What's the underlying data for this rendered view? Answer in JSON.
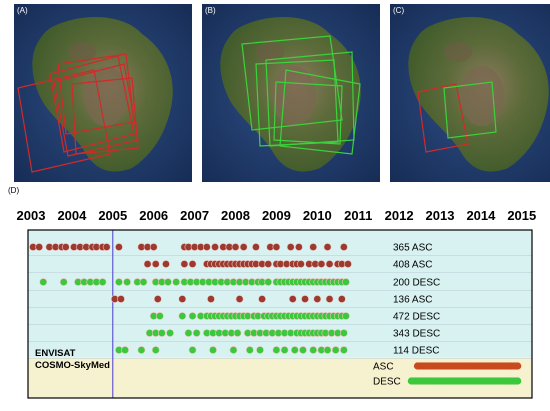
{
  "panels": [
    {
      "label": "(A)",
      "color": "#d02a2a"
    },
    {
      "label": "(B)",
      "color": "#3cd23c"
    },
    {
      "label": "(C)",
      "color": "#3cd23c",
      "color2": "#d02a2a"
    }
  ],
  "timeline_label": "(D)",
  "colors": {
    "envisat": "#9b3a2e",
    "cosmo": "#3cc83c",
    "envisat_band": "#d8f2f2",
    "cosmo_band": "#f6f2cf",
    "marker_line": "#4a3ad0"
  },
  "chart_data": {
    "type": "timeline",
    "x_ticks": [
      "2003",
      "2004",
      "2005",
      "2006",
      "2007",
      "2008",
      "2009",
      "2010",
      "2011",
      "2012",
      "2013",
      "2014",
      "2015"
    ],
    "marker_year": 2005,
    "legend": [
      "ENVISAT",
      "COSMO-SkyMed"
    ],
    "tracks": [
      {
        "name": "365 ASC",
        "sensor": "ENVISAT",
        "dates": [
          2003.05,
          2003.2,
          2003.45,
          2003.6,
          2003.75,
          2003.85,
          2004.05,
          2004.2,
          2004.35,
          2004.5,
          2004.6,
          2004.75,
          2004.85,
          2005.15,
          2005.7,
          2005.85,
          2006.0,
          2006.75,
          2006.85,
          2007.0,
          2007.15,
          2007.3,
          2007.5,
          2007.7,
          2007.85,
          2008.0,
          2008.2,
          2008.5,
          2008.85,
          2009.0,
          2009.35,
          2009.55,
          2009.9,
          2010.25,
          2010.65
        ]
      },
      {
        "name": "408 ASC",
        "sensor": "ENVISAT",
        "dates": [
          2005.85,
          2006.05,
          2006.3,
          2006.75,
          2006.95,
          2007.3,
          2007.4,
          2007.5,
          2007.6,
          2007.7,
          2007.8,
          2007.9,
          2008.0,
          2008.1,
          2008.2,
          2008.3,
          2008.4,
          2008.5,
          2008.65,
          2008.8,
          2009.0,
          2009.1,
          2009.25,
          2009.4,
          2009.5,
          2009.6,
          2009.8,
          2009.95,
          2010.1,
          2010.3,
          2010.5,
          2010.6,
          2010.75
        ]
      },
      {
        "name": "200 DESC",
        "sensor": "ENVISAT",
        "dates": [
          2003.3,
          2003.8,
          2004.15,
          2004.3,
          2004.45,
          2004.6,
          2004.75,
          2005.15,
          2005.35,
          2005.6,
          2005.75,
          2006.05,
          2006.2,
          2006.35,
          2006.55,
          2006.75,
          2006.9,
          2007.05,
          2007.2,
          2007.35,
          2007.5,
          2007.65,
          2007.8,
          2007.95,
          2008.1,
          2008.25,
          2008.4,
          2008.55,
          2008.65,
          2008.8,
          2009.0,
          2009.1,
          2009.2,
          2009.3,
          2009.4,
          2009.5,
          2009.6,
          2009.7,
          2009.8,
          2009.9,
          2010.0,
          2010.1,
          2010.2,
          2010.3,
          2010.4,
          2010.5,
          2010.6,
          2010.7
        ]
      },
      {
        "name": "136 ASC",
        "sensor": "ENVISAT",
        "dates": [
          2005.05,
          2005.2,
          2006.1,
          2006.7,
          2007.4,
          2008.1,
          2008.65,
          2009.4,
          2009.7,
          2010.0,
          2010.3,
          2010.6
        ]
      },
      {
        "name": "472 DESC",
        "sensor": "ENVISAT",
        "dates": [
          2006.0,
          2006.15,
          2006.7,
          2006.95,
          2007.15,
          2007.3,
          2007.4,
          2007.5,
          2007.6,
          2007.7,
          2007.8,
          2007.9,
          2008.0,
          2008.1,
          2008.2,
          2008.3,
          2008.45,
          2008.55,
          2008.7,
          2008.8,
          2008.9,
          2009.0,
          2009.1,
          2009.2,
          2009.3,
          2009.4,
          2009.5,
          2009.6,
          2009.7,
          2009.8,
          2009.9,
          2010.0,
          2010.1,
          2010.2,
          2010.3,
          2010.4,
          2010.5,
          2010.6,
          2010.7
        ]
      },
      {
        "name": "343 DESC",
        "sensor": "ENVISAT",
        "dates": [
          2005.9,
          2006.05,
          2006.2,
          2006.4,
          2006.85,
          2007.05,
          2007.3,
          2007.45,
          2007.6,
          2007.75,
          2007.9,
          2008.05,
          2008.3,
          2008.45,
          2008.6,
          2008.75,
          2008.9,
          2009.05,
          2009.2,
          2009.35,
          2009.5,
          2009.6,
          2009.7,
          2009.8,
          2009.9,
          2010.0,
          2010.1,
          2010.2,
          2010.35,
          2010.5,
          2010.65
        ]
      },
      {
        "name": "114 DESC",
        "sensor": "ENVISAT",
        "dates": [
          2005.15,
          2005.3,
          2005.7,
          2006.05,
          2006.95,
          2007.45,
          2007.95,
          2008.35,
          2008.6,
          2009.0,
          2009.2,
          2009.45,
          2009.65,
          2009.9,
          2010.1,
          2010.25,
          2010.45,
          2010.65
        ]
      },
      {
        "name": "ASC",
        "sensor": "COSMO-SkyMed",
        "continuous": true,
        "start": 2012.45,
        "end": 2014.9
      },
      {
        "name": "DESC",
        "sensor": "COSMO-SkyMed",
        "continuous": true,
        "start": 2012.3,
        "end": 2014.9
      }
    ]
  }
}
